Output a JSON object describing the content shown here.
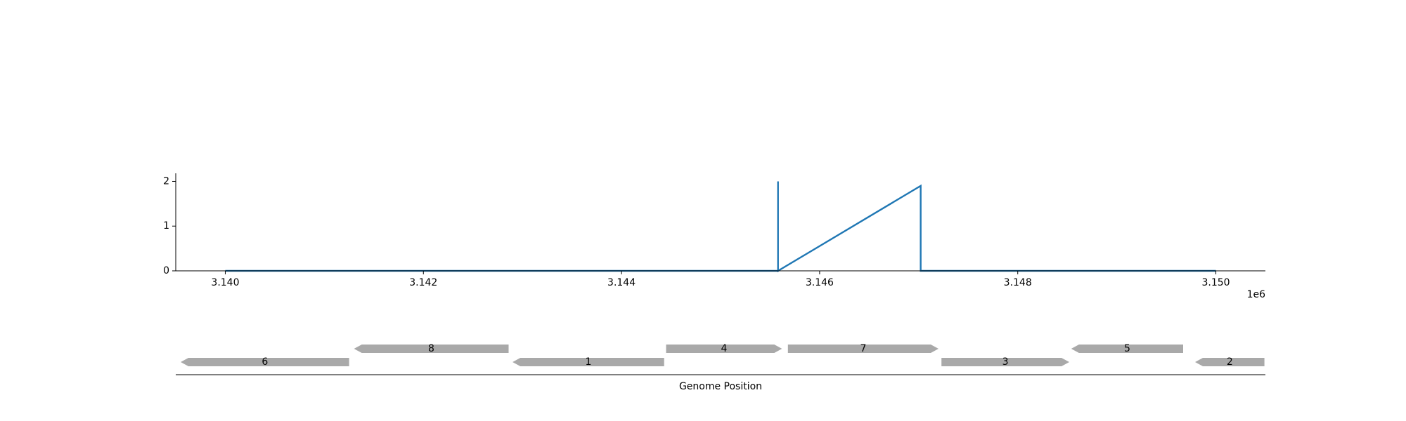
{
  "chart_data": [
    {
      "type": "line",
      "x_ticks": [
        "3.140",
        "3.142",
        "3.144",
        "3.146",
        "3.148",
        "3.150"
      ],
      "x_tick_values": [
        3140000,
        3142000,
        3144000,
        3146000,
        3148000,
        3150000
      ],
      "x_offset_text": "1e6",
      "xlim": [
        3139500,
        3150500
      ],
      "y_ticks": [
        "0",
        "1",
        "2"
      ],
      "y_tick_values": [
        0,
        1,
        2
      ],
      "ylim": [
        0,
        2.18
      ],
      "series": [
        {
          "x": [
            3140000,
            3145580,
            3145580,
            3145580,
            3147020,
            3147020,
            3147020,
            3150000
          ],
          "values": [
            0,
            0,
            2.0,
            0,
            1.9,
            0,
            0,
            0
          ]
        }
      ],
      "color": "#1f77b4"
    },
    {
      "type": "gene-map",
      "xlabel": "Genome Position",
      "genes": [
        {
          "label": "6",
          "start": 3139550,
          "end": 3141250,
          "strand": "-",
          "row": 0
        },
        {
          "label": "8",
          "start": 3141300,
          "end": 3142860,
          "strand": "-",
          "row": 1
        },
        {
          "label": "1",
          "start": 3142900,
          "end": 3144430,
          "strand": "-",
          "row": 0
        },
        {
          "label": "4",
          "start": 3144450,
          "end": 3145620,
          "strand": "+",
          "row": 1
        },
        {
          "label": "7",
          "start": 3145680,
          "end": 3147200,
          "strand": "+",
          "row": 1
        },
        {
          "label": "3",
          "start": 3147230,
          "end": 3148520,
          "strand": "+",
          "row": 0
        },
        {
          "label": "5",
          "start": 3148540,
          "end": 3149670,
          "strand": "-",
          "row": 1
        },
        {
          "label": "2",
          "start": 3149790,
          "end": 3150490,
          "strand": "-",
          "row": 0
        }
      ],
      "color": "#a9a9a9"
    }
  ]
}
